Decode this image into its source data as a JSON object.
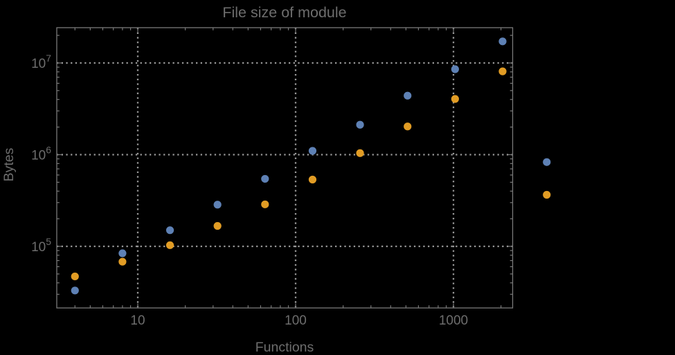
{
  "chart_data": {
    "type": "scatter",
    "title": "File size of module",
    "xlabel": "Functions",
    "ylabel": "Bytes",
    "x_scale": "log",
    "y_scale": "log",
    "grid": "dotted-major-gridlines",
    "legend": "none",
    "x_major_ticks": [
      10,
      100,
      1000
    ],
    "x_tick_labels": [
      "10",
      "100",
      "1000"
    ],
    "y_major_ticks": [
      100000,
      1000000,
      10000000
    ],
    "y_tick_labels": [
      {
        "base": "10",
        "exp": "5"
      },
      {
        "base": "10",
        "exp": "6"
      },
      {
        "base": "10",
        "exp": "7"
      }
    ],
    "xlim": [
      3.08,
      2370
    ],
    "ylim": [
      21500,
      24500000
    ],
    "colors": {
      "background": "#000000",
      "frame": "#7a7a7a",
      "grid": "#989898",
      "text": "#6d6d6d",
      "series_blue": "#5e81b5",
      "series_orange": "#e19c24"
    },
    "series": [
      {
        "name": "blue-series",
        "color": "#5e81b5",
        "points": [
          [
            4,
            33000
          ],
          [
            8,
            84000
          ],
          [
            16,
            150000
          ],
          [
            32,
            285000
          ],
          [
            64,
            545000
          ],
          [
            128,
            1100000
          ],
          [
            256,
            2120000
          ],
          [
            512,
            4400000
          ],
          [
            1024,
            8550000
          ],
          [
            2048,
            17200000
          ],
          [
            3900,
            830000
          ]
        ]
      },
      {
        "name": "orange-series",
        "color": "#e19c24",
        "points": [
          [
            4,
            47000
          ],
          [
            8,
            68000
          ],
          [
            16,
            103000
          ],
          [
            32,
            167000
          ],
          [
            64,
            287000
          ],
          [
            128,
            535000
          ],
          [
            256,
            1040000
          ],
          [
            512,
            2030000
          ],
          [
            1024,
            4050000
          ],
          [
            2048,
            8100000
          ],
          [
            3900,
            365000
          ]
        ]
      }
    ]
  }
}
